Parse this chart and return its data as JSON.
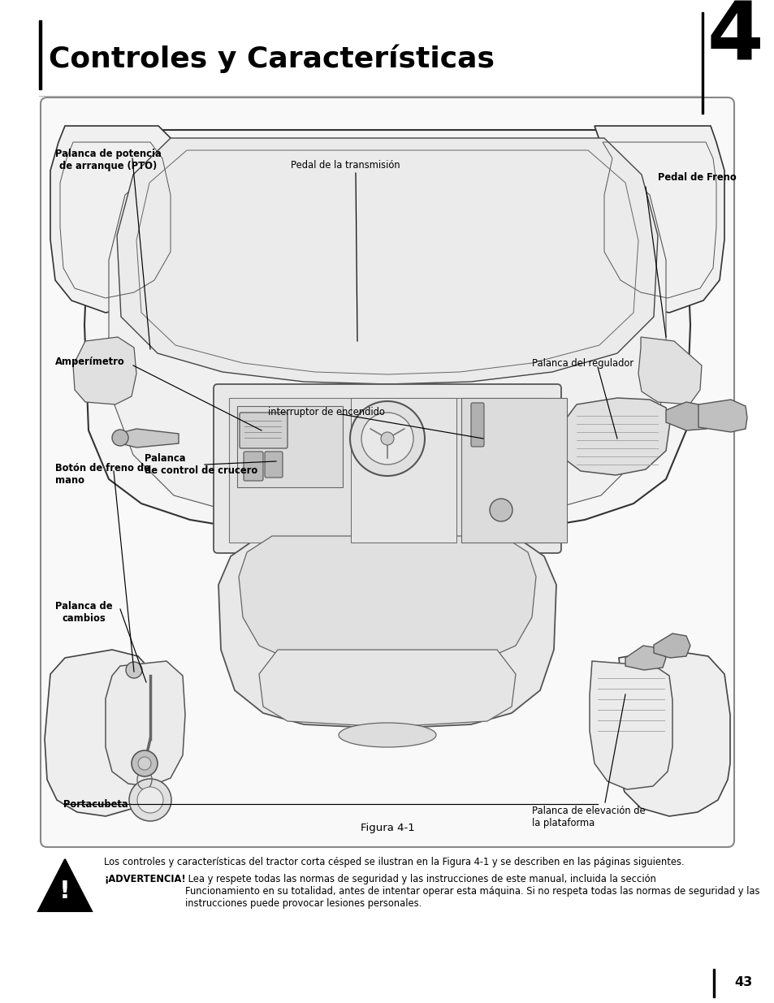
{
  "page_bg": "#ffffff",
  "title": "Controles y Características",
  "chapter_num": "4",
  "figure_caption": "Figura 4-1",
  "body_text_1": "Los controles y características del tractor corta césped se ilustran en la Figura 4-1 y se describen en las páginas siguientes.",
  "body_text_2_bold": "¡ADVERTENCIA!",
  "body_text_2": " Lea y respete todas las normas de seguridad y las instrucciones de este manual, incluida la sección\nFuncionamiento en su totalidad, antes de intentar operar esta máquina. Si no respeta todas las normas de seguridad y las\ninstrucciones puede provocar lesiones personales.",
  "page_number": "43",
  "label_pto": "Palanca de potencia\nde arranque (PTO)",
  "label_transmission": "Pedal de la transmisión",
  "label_brake_pedal": "Pedal de Freno",
  "label_ammeter": "Amperímetro",
  "label_throttle": "Palanca del regulador",
  "label_ignition": "interruptor de encendido",
  "label_handbrake": "Botón de freno de\nmano",
  "label_cruise": "Palanca\nde control de crucero",
  "label_gearshift": "Palanca de\ncambios",
  "label_cupholder": "Portacubeta",
  "label_lift": "Palanca de elevación de\nla plataforma"
}
